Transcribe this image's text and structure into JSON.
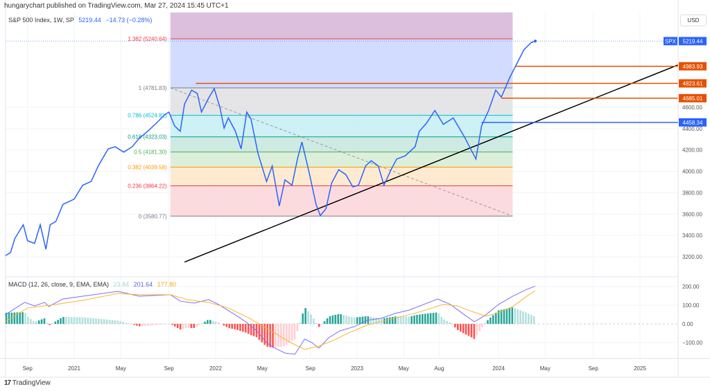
{
  "header": {
    "publisher": "hungarychart published on TradingView.com, Mar 27, 2024 15:45 UTC+1"
  },
  "legend": {
    "symbol": "S&P 500 Index, 1W, SP",
    "price": "5219.44",
    "change": "−14.73 (−0.28%)"
  },
  "currency": "USD",
  "footer": {
    "brand": "TradingView"
  },
  "chart_data": [
    {
      "type": "line",
      "title": "S&P 500 Index, 1W, SP",
      "x_unit": "decimal year",
      "xlim": [
        2020.5,
        2025.3
      ],
      "ylim": [
        3150,
        5400
      ],
      "y_ticks": [
        "3200.00",
        "3400.00",
        "3600.00",
        "3800.00",
        "4000.00",
        "4200.00",
        "4400.00",
        "4600.00"
      ],
      "x_ticks": [
        {
          "label": "Sep",
          "x": 2020.67
        },
        {
          "label": "2021",
          "x": 2021.0
        },
        {
          "label": "May",
          "x": 2021.33
        },
        {
          "label": "Sep",
          "x": 2021.67
        },
        {
          "label": "2022",
          "x": 2022.0
        },
        {
          "label": "May",
          "x": 2022.33
        },
        {
          "label": "Sep",
          "x": 2022.67
        },
        {
          "label": "2023",
          "x": 2023.0
        },
        {
          "label": "May",
          "x": 2023.33
        },
        {
          "label": "Aug",
          "x": 2023.58
        },
        {
          "label": "2024",
          "x": 2024.0
        },
        {
          "label": "May",
          "x": 2024.33
        },
        {
          "label": "Sep",
          "x": 2024.67
        },
        {
          "label": "2025",
          "x": 2025.0
        }
      ],
      "series": [
        {
          "name": "SPX",
          "color": "#2962ff",
          "points": [
            [
              2020.51,
              3207
            ],
            [
              2020.55,
              3240
            ],
            [
              2020.58,
              3370
            ],
            [
              2020.64,
              3500
            ],
            [
              2020.67,
              3350
            ],
            [
              2020.72,
              3325
            ],
            [
              2020.76,
              3500
            ],
            [
              2020.8,
              3270
            ],
            [
              2020.83,
              3500
            ],
            [
              2020.87,
              3530
            ],
            [
              2020.92,
              3690
            ],
            [
              2021.0,
              3740
            ],
            [
              2021.06,
              3870
            ],
            [
              2021.12,
              3905
            ],
            [
              2021.17,
              4050
            ],
            [
              2021.24,
              4210
            ],
            [
              2021.29,
              4230
            ],
            [
              2021.35,
              4180
            ],
            [
              2021.41,
              4230
            ],
            [
              2021.46,
              4310
            ],
            [
              2021.52,
              4375
            ],
            [
              2021.58,
              4450
            ],
            [
              2021.64,
              4530
            ],
            [
              2021.67,
              4555
            ],
            [
              2021.71,
              4425
            ],
            [
              2021.75,
              4375
            ],
            [
              2021.78,
              4630
            ],
            [
              2021.83,
              4760
            ],
            [
              2021.87,
              4730
            ],
            [
              2021.9,
              4555
            ],
            [
              2021.95,
              4685
            ],
            [
              2021.99,
              4775
            ],
            [
              2022.03,
              4600
            ],
            [
              2022.06,
              4405
            ],
            [
              2022.09,
              4500
            ],
            [
              2022.14,
              4375
            ],
            [
              2022.18,
              4210
            ],
            [
              2022.22,
              4555
            ],
            [
              2022.25,
              4490
            ],
            [
              2022.3,
              4165
            ],
            [
              2022.36,
              3905
            ],
            [
              2022.4,
              4050
            ],
            [
              2022.45,
              3675
            ],
            [
              2022.49,
              3920
            ],
            [
              2022.54,
              3870
            ],
            [
              2022.58,
              4125
            ],
            [
              2022.61,
              4275
            ],
            [
              2022.66,
              3995
            ],
            [
              2022.71,
              3690
            ],
            [
              2022.74,
              3585
            ],
            [
              2022.78,
              3650
            ],
            [
              2022.82,
              3890
            ],
            [
              2022.87,
              4015
            ],
            [
              2022.92,
              3970
            ],
            [
              2022.97,
              3855
            ],
            [
              2023.01,
              3870
            ],
            [
              2023.06,
              4050
            ],
            [
              2023.1,
              4100
            ],
            [
              2023.15,
              4050
            ],
            [
              2023.19,
              3870
            ],
            [
              2023.24,
              4015
            ],
            [
              2023.28,
              4115
            ],
            [
              2023.34,
              4145
            ],
            [
              2023.41,
              4230
            ],
            [
              2023.44,
              4375
            ],
            [
              2023.49,
              4450
            ],
            [
              2023.55,
              4570
            ],
            [
              2023.61,
              4440
            ],
            [
              2023.68,
              4500
            ],
            [
              2023.76,
              4320
            ],
            [
              2023.84,
              4115
            ],
            [
              2023.88,
              4425
            ],
            [
              2023.93,
              4570
            ],
            [
              2023.98,
              4760
            ],
            [
              2024.02,
              4695
            ],
            [
              2024.08,
              4880
            ],
            [
              2024.13,
              5010
            ],
            [
              2024.18,
              5140
            ],
            [
              2024.23,
              5205
            ],
            [
              2024.26,
              5219.44
            ]
          ]
        }
      ],
      "last_price": {
        "label": "SPX",
        "value": "5219.44",
        "color": "#2962ff"
      },
      "fibonacci": {
        "x_range": [
          2021.68,
          2024.1
        ],
        "levels": [
          {
            "ratio": "1.382",
            "value": 5240.64,
            "label": "1.382 (5240.64)",
            "color": "#f23645",
            "fill": "#c9d6ff"
          },
          {
            "ratio": "1",
            "value": 4781.83,
            "label": "1 (4781.83)",
            "color": "#787b86",
            "fill": "#e0e0e3"
          },
          {
            "ratio": "0.786",
            "value": 4524.81,
            "label": "0.786 (4524.81)",
            "color": "#00bcd4",
            "fill": "#c4eef3"
          },
          {
            "ratio": "0.618",
            "value": 4323.03,
            "label": "0.618 (4323.03)",
            "color": "#089981",
            "fill": "#c5e6dd"
          },
          {
            "ratio": "0.5",
            "value": 4181.3,
            "label": "0.5 (4181.30)",
            "color": "#4caf50",
            "fill": "#d6ecd5"
          },
          {
            "ratio": "0.382",
            "value": 4039.58,
            "label": "0.382 (4039.58)",
            "color": "#ff9800",
            "fill": "#fde6c8"
          },
          {
            "ratio": "0.236",
            "value": 3864.22,
            "label": "0.236 (3864.22)",
            "color": "#f23645",
            "fill": "#fbd5d9"
          },
          {
            "ratio": "0",
            "value": 3580.77,
            "label": "0 (3580.77)",
            "color": "#787b86",
            "fill": null
          }
        ],
        "top_fill": "#dcbfdd"
      },
      "horizontal_rays": [
        {
          "value": "4983.93",
          "from": 2024.12,
          "color": "#e65100"
        },
        {
          "value": "4823.61",
          "from": 2021.86,
          "color": "#e65100"
        },
        {
          "value": "4685.01",
          "from": 2024.02,
          "color": "#e65100"
        },
        {
          "value": "4458.34",
          "from": 2023.88,
          "color": "#2962ff"
        }
      ],
      "trend_line": {
        "from": [
          2021.78,
          3150
        ],
        "to": [
          2025.27,
          4997
        ],
        "color": "#000000"
      },
      "fib_diagonal": {
        "from": [
          2021.68,
          4781.83
        ],
        "to": [
          2024.1,
          3580.77
        ]
      }
    },
    {
      "type": "line",
      "title": "MACD (12, 26, close, 9, EMA, EMA)",
      "values_label": {
        "histogram": "23.84",
        "macd": "201.64",
        "signal": "177.80"
      },
      "ylim": [
        -185,
        245
      ],
      "y_ticks": [
        "200.00",
        "100.00",
        "0.00",
        "−100.00"
      ],
      "series": [
        {
          "name": "MACD",
          "color": "#7b6cf6",
          "points": [
            [
              2020.51,
              48
            ],
            [
              2020.65,
              115
            ],
            [
              2020.72,
              96
            ],
            [
              2020.79,
              115
            ],
            [
              2020.82,
              93
            ],
            [
              2020.92,
              133
            ],
            [
              2021.06,
              148
            ],
            [
              2021.31,
              174
            ],
            [
              2021.46,
              148
            ],
            [
              2021.68,
              156
            ],
            [
              2021.75,
              122
            ],
            [
              2021.85,
              111
            ],
            [
              2021.95,
              130
            ],
            [
              2022.02,
              104
            ],
            [
              2022.14,
              48
            ],
            [
              2022.22,
              7
            ],
            [
              2022.29,
              -37
            ],
            [
              2022.36,
              -100
            ],
            [
              2022.41,
              -126
            ],
            [
              2022.49,
              -156
            ],
            [
              2022.56,
              -163
            ],
            [
              2022.63,
              -81
            ],
            [
              2022.68,
              -100
            ],
            [
              2022.73,
              -130
            ],
            [
              2022.8,
              -74
            ],
            [
              2022.88,
              -37
            ],
            [
              2022.98,
              -15
            ],
            [
              2023.07,
              19
            ],
            [
              2023.17,
              30
            ],
            [
              2023.27,
              56
            ],
            [
              2023.37,
              74
            ],
            [
              2023.47,
              104
            ],
            [
              2023.57,
              133
            ],
            [
              2023.66,
              104
            ],
            [
              2023.76,
              48
            ],
            [
              2023.83,
              11
            ],
            [
              2023.91,
              48
            ],
            [
              2024.0,
              104
            ],
            [
              2024.1,
              148
            ],
            [
              2024.2,
              185
            ],
            [
              2024.26,
              201.64
            ]
          ]
        },
        {
          "name": "Signal",
          "color": "#f7b52c",
          "points": [
            [
              2020.51,
              11
            ],
            [
              2020.67,
              85
            ],
            [
              2020.87,
              104
            ],
            [
              2021.06,
              126
            ],
            [
              2021.31,
              163
            ],
            [
              2021.46,
              156
            ],
            [
              2021.68,
              156
            ],
            [
              2021.8,
              130
            ],
            [
              2021.95,
              115
            ],
            [
              2022.09,
              85
            ],
            [
              2022.24,
              30
            ],
            [
              2022.39,
              -37
            ],
            [
              2022.53,
              -100
            ],
            [
              2022.63,
              -137
            ],
            [
              2022.73,
              -119
            ],
            [
              2022.83,
              -89
            ],
            [
              2022.93,
              -52
            ],
            [
              2023.07,
              -7
            ],
            [
              2023.22,
              22
            ],
            [
              2023.42,
              59
            ],
            [
              2023.61,
              104
            ],
            [
              2023.71,
              96
            ],
            [
              2023.81,
              67
            ],
            [
              2023.91,
              41
            ],
            [
              2024.0,
              59
            ],
            [
              2024.1,
              93
            ],
            [
              2024.2,
              148
            ],
            [
              2024.26,
              177.8
            ]
          ]
        }
      ]
    }
  ]
}
